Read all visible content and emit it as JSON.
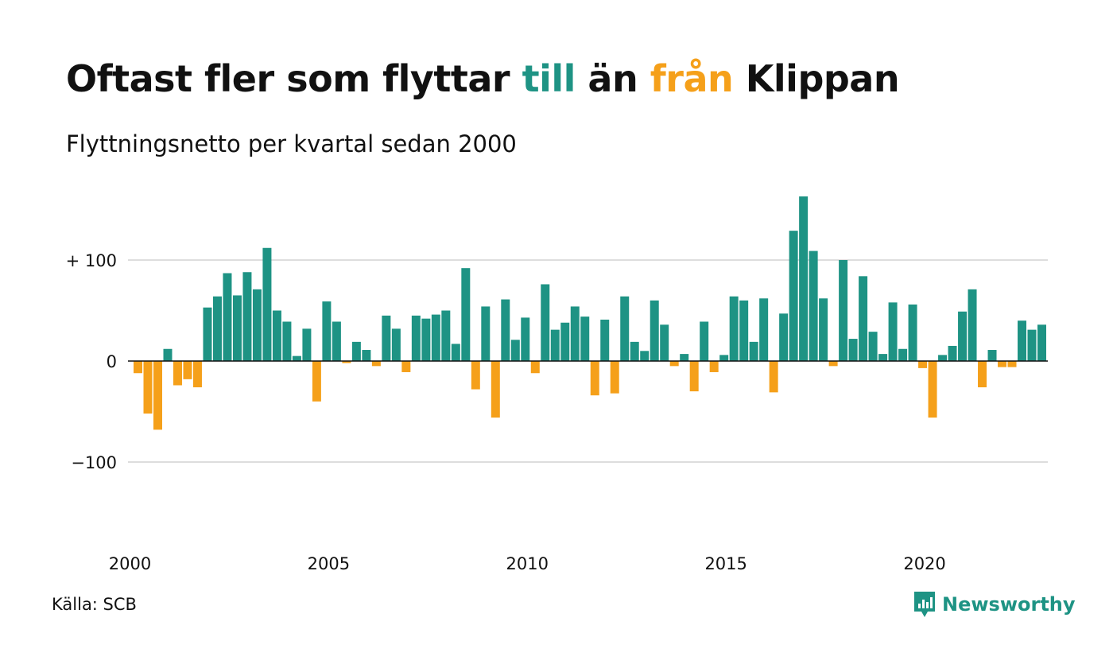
{
  "title": {
    "part1": "Oftast fler som flyttar ",
    "part2": "till",
    "part3": " än ",
    "part4": "från",
    "part5": " Klippan"
  },
  "subtitle": "Flyttningsnetto per kvartal sedan 2000",
  "source": "Källa: SCB",
  "logo": {
    "text": "Newsworthy",
    "icon": "newsworthy-chart-icon"
  },
  "colors": {
    "positive": "#1e9384",
    "negative": "#f5a01a",
    "grid": "#dddddd",
    "zero": "#111111"
  },
  "chart_data": {
    "type": "bar",
    "x_start": "2000 Q1",
    "y_ticks": [
      {
        "value": 100,
        "label": "+ 100"
      },
      {
        "value": 0,
        "label": "0"
      },
      {
        "value": -100,
        "label": "−100"
      }
    ],
    "ylim": [
      -180,
      170
    ],
    "x_ticks": [
      {
        "index": 0,
        "label": "2000"
      },
      {
        "index": 20,
        "label": "2005"
      },
      {
        "index": 40,
        "label": "2010"
      },
      {
        "index": 60,
        "label": "2015"
      },
      {
        "index": 80,
        "label": "2020"
      }
    ],
    "values": [
      -12,
      -52,
      -68,
      12,
      -24,
      -18,
      -26,
      53,
      64,
      87,
      65,
      88,
      71,
      112,
      50,
      39,
      5,
      32,
      -40,
      59,
      39,
      -2,
      19,
      11,
      -5,
      45,
      32,
      -11,
      45,
      42,
      46,
      50,
      17,
      92,
      -28,
      54,
      -56,
      61,
      21,
      43,
      -12,
      76,
      31,
      38,
      54,
      44,
      -34,
      41,
      -32,
      64,
      19,
      10,
      60,
      36,
      -5,
      7,
      -30,
      39,
      -11,
      6,
      64,
      60,
      19,
      62,
      -31,
      47,
      129,
      163,
      109,
      62,
      -5,
      100,
      22,
      84,
      29,
      7,
      58,
      12,
      56,
      -7,
      -56,
      6,
      15,
      49,
      71,
      -26,
      11,
      -6,
      -6,
      40,
      31,
      36
    ]
  }
}
